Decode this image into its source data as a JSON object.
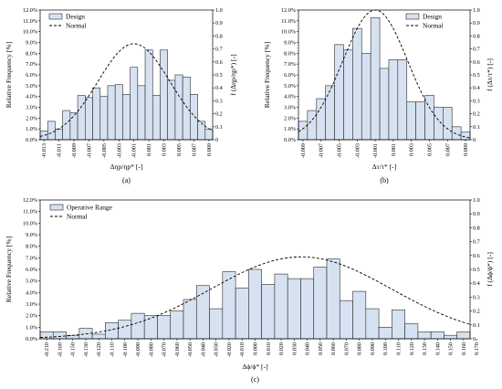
{
  "chart_data": [
    {
      "type": "bar",
      "caption": "(a)",
      "xlabel": "Δηp/ηp* [-]",
      "ylabel": "Relative Frequency [%]",
      "y2label": "f (Δηp/ηp*) [-]",
      "ylim": [
        0,
        12
      ],
      "y2lim": [
        0,
        1
      ],
      "yticks": [
        "0.0%",
        "1.0%",
        "2.0%",
        "3.0%",
        "4.0%",
        "5.0%",
        "6.0%",
        "7.0%",
        "8.0%",
        "9.0%",
        "10.0%",
        "11.0%",
        "12.0%"
      ],
      "y2ticks": [
        "0",
        "0.1",
        "0.2",
        "0.3",
        "0.4",
        "0.5",
        "0.6",
        "0.7",
        "0.8",
        "0.9",
        "1.0"
      ],
      "xticklabels": [
        "-0.013",
        "-0.011",
        "-0.009",
        "-0.007",
        "-0.005",
        "-0.003",
        "-0.001",
        "0.001",
        "0.003",
        "0.005",
        "0.007",
        "0.009"
      ],
      "series": [
        {
          "name": "Design",
          "kind": "histogram",
          "values": [
            0.8,
            1.7,
            1.0,
            2.7,
            2.5,
            4.1,
            3.9,
            4.8,
            4.0,
            5.0,
            5.1,
            4.2,
            6.7,
            5.0,
            8.3,
            4.1,
            8.3,
            5.5,
            6.0,
            5.8,
            4.2,
            1.7,
            1.0
          ]
        },
        {
          "name": "Normal",
          "kind": "normal-curve",
          "mean": -0.001,
          "sd": 0.0048,
          "peak": 0.74
        }
      ],
      "legend": "top-left",
      "grid": false
    },
    {
      "type": "bar",
      "caption": "(b)",
      "xlabel": "Δτ/τ* [-]",
      "ylabel": "Relative Frequency [%]",
      "y2label": "f (Δτ/τ*) [-]",
      "ylim": [
        0,
        12
      ],
      "y2lim": [
        0,
        1
      ],
      "yticks": [
        "0.0%",
        "1.0%",
        "2.0%",
        "3.0%",
        "4.0%",
        "5.0%",
        "6.0%",
        "7.0%",
        "8.0%",
        "9.0%",
        "10.0%",
        "11.0%",
        "12.0%"
      ],
      "y2ticks": [
        "0",
        "0.1",
        "0.2",
        "0.3",
        "0.4",
        "0.5",
        "0.6",
        "0.7",
        "0.8",
        "0.9",
        "1.0"
      ],
      "xticklabels": [
        "-0.009",
        "-0.007",
        "-0.005",
        "-0.003",
        "-0.001",
        "0.001",
        "0.003",
        "0.005",
        "0.007",
        "0.009"
      ],
      "series": [
        {
          "name": "Design",
          "kind": "histogram",
          "values": [
            1.7,
            2.7,
            3.8,
            5.0,
            8.8,
            8.3,
            10.3,
            8.0,
            11.3,
            6.6,
            7.4,
            7.4,
            3.5,
            3.5,
            4.1,
            3.0,
            3.0,
            1.2,
            0.7
          ]
        },
        {
          "name": "Normal",
          "kind": "normal-curve",
          "mean": -0.001,
          "sd": 0.0036,
          "peak": 1.0
        }
      ],
      "legend": "top-right",
      "grid": false
    },
    {
      "type": "bar",
      "caption": "(c)",
      "xlabel": "Δϕ/ϕ* [-]",
      "ylabel": "Relative Frequency [%]",
      "y2label": "f (Δϕ/ϕ*) [-]",
      "ylim": [
        0,
        12
      ],
      "y2lim": [
        0,
        1
      ],
      "yticks": [
        "0.0%",
        "1.0%",
        "2.0%",
        "3.0%",
        "4.0%",
        "5.0%",
        "6.0%",
        "7.0%",
        "8.0%",
        "9.0%",
        "10.0%",
        "11.0%",
        "12.0%"
      ],
      "y2ticks": [
        "0",
        "0.1",
        "0.2",
        "0.3",
        "0.4",
        "0.5",
        "0.6",
        "0.7",
        "0.8",
        "0.9",
        "1.0"
      ],
      "xticklabels": [
        "-0.210",
        "-0.160",
        "-0.150",
        "-0.130",
        "-0.120",
        "-0.110",
        "-0.100",
        "-0.090",
        "-0.080",
        "-0.070",
        "-0.060",
        "-0.050",
        "-0.040",
        "-0.030",
        "-0.020",
        "-0.010",
        "0.000",
        "0.010",
        "0.020",
        "0.030",
        "0.040",
        "0.050",
        "0.060",
        "0.070",
        "0.080",
        "0.090",
        "0.100",
        "0.110",
        "0.120",
        "0.130",
        "0.140",
        "0.150",
        "0.160",
        "0.170"
      ],
      "series": [
        {
          "name": "Operative Range",
          "kind": "histogram",
          "values": [
            0.6,
            0.6,
            0.3,
            0.9,
            0.4,
            1.4,
            1.6,
            2.2,
            2.0,
            2.0,
            2.4,
            3.4,
            4.6,
            2.6,
            5.8,
            4.4,
            6.0,
            4.7,
            5.6,
            5.2,
            5.2,
            6.2,
            6.9,
            3.3,
            4.1,
            2.6,
            1.0,
            2.5,
            1.3,
            0.6,
            0.6,
            0.3,
            0.6
          ]
        },
        {
          "name": "Normal",
          "kind": "normal-curve",
          "mean": 0.015,
          "sd": 0.08,
          "peak": 0.59
        }
      ],
      "legend": "top-left",
      "grid": false
    }
  ],
  "colors": {
    "bar_fill": "#d6e2f1",
    "bar_stroke": "#2b2b2b",
    "curve": "#000000"
  }
}
